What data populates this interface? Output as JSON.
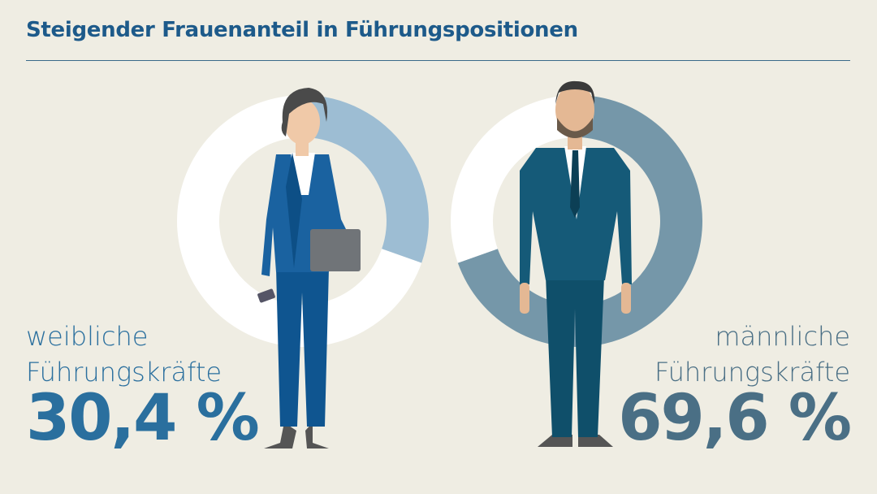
{
  "chart_data": {
    "type": "donut",
    "title": "Steigender Frauenanteil in Führungspositionen",
    "categories": [
      "weibliche Führungskräfte",
      "männliche Führungskräfte"
    ],
    "values": [
      30.4,
      69.6
    ],
    "value_labels": [
      "30,4 %",
      "69,6 %"
    ],
    "colors": [
      "#9dbdd3",
      "#7597a9"
    ],
    "rest_color": "#ffffff",
    "label_colors": [
      "#2a6f9e",
      "#4a6f85"
    ]
  }
}
